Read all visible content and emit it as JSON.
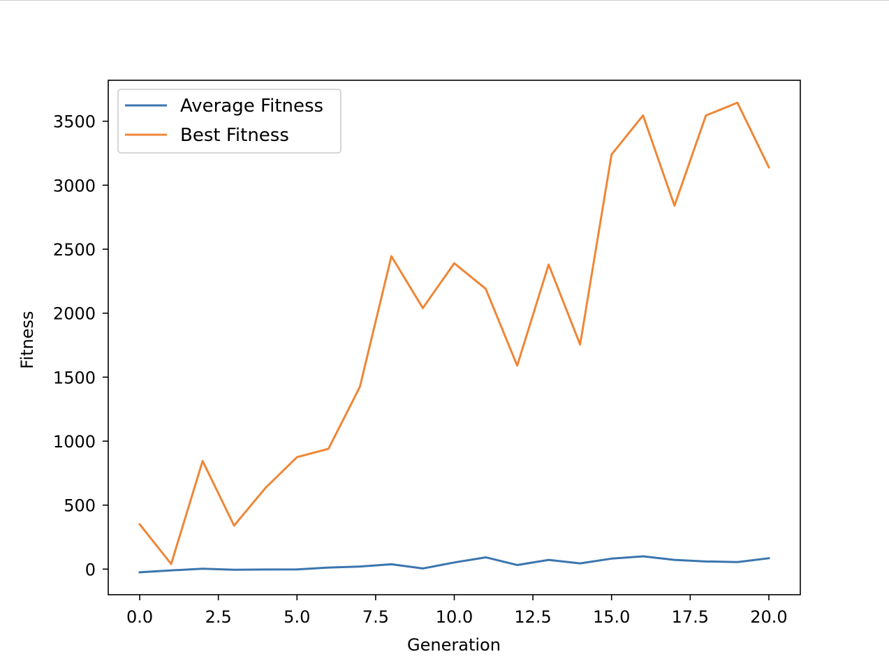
{
  "chart_data": {
    "type": "line",
    "xlabel": "Generation",
    "ylabel": "Fitness",
    "xlim": [
      -1.0,
      21.0
    ],
    "ylim": [
      -200,
      3820
    ],
    "xticks": [
      0.0,
      2.5,
      5.0,
      7.5,
      10.0,
      12.5,
      15.0,
      17.5,
      20.0
    ],
    "xtick_labels": [
      "0.0",
      "2.5",
      "5.0",
      "7.5",
      "10.0",
      "12.5",
      "15.0",
      "17.5",
      "20.0"
    ],
    "yticks": [
      0,
      500,
      1000,
      1500,
      2000,
      2500,
      3000,
      3500
    ],
    "ytick_labels": [
      "0",
      "500",
      "1000",
      "1500",
      "2000",
      "2500",
      "3000",
      "3500"
    ],
    "grid": false,
    "legend_position": "top-left",
    "x": [
      0,
      1,
      2,
      3,
      4,
      5,
      6,
      7,
      8,
      9,
      10,
      11,
      12,
      13,
      14,
      15,
      16,
      17,
      18,
      19,
      20
    ],
    "series": [
      {
        "name": "Average Fitness",
        "color": "#3a75ae",
        "values": [
          -25,
          -10,
          3,
          -5,
          -3,
          -2,
          12,
          20,
          38,
          5,
          52,
          92,
          32,
          72,
          45,
          82,
          100,
          72,
          60,
          55,
          85
        ]
      },
      {
        "name": "Best Fitness",
        "color": "#ef8636",
        "values": [
          350,
          40,
          845,
          340,
          635,
          875,
          940,
          1425,
          2445,
          2040,
          2390,
          2190,
          1590,
          2380,
          1755,
          3240,
          3545,
          2840,
          3545,
          3645,
          3140
        ]
      }
    ]
  }
}
